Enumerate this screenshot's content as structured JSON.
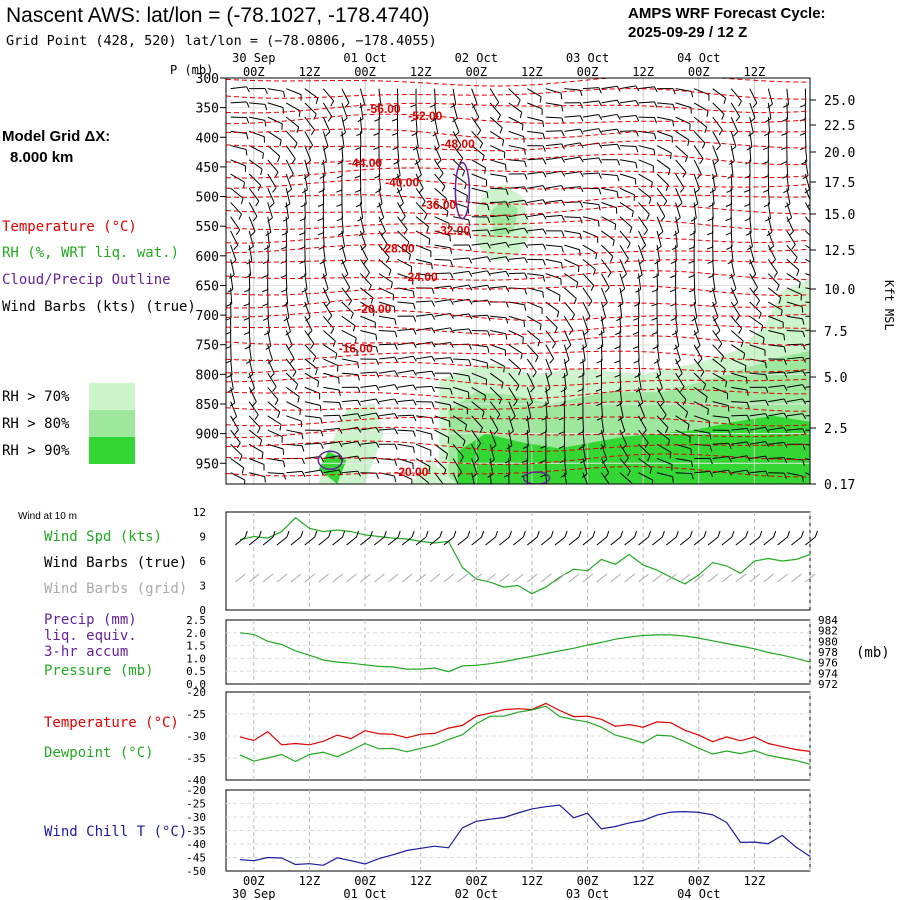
{
  "header": {
    "title": "Nascent AWS:  lat/lon = (-78.1027, -178.4740)",
    "subtitle": "Grid Point (428, 520) lat/lon = (−78.0806, −178.4055)",
    "cycle_line1": "AMPS WRF Forecast Cycle:",
    "cycle_line2": "2025-09-29 / 12  Z",
    "model_grid_label": "Model Grid ΔX:",
    "model_grid_value": "8.000 km"
  },
  "colors": {
    "temperature": "#dd0000",
    "rh": "#22aa22",
    "cloud": "#662299",
    "wind": "#000000",
    "wind_grid": "#aaaaaa",
    "wind_chill": "#1a1aa0",
    "rh70": "#ccf5cc",
    "rh80": "#9ee89e",
    "rh90": "#33d633"
  },
  "time_axis": {
    "top_dates": [
      "30 Sep",
      "01 Oct",
      "02 Oct",
      "03 Oct",
      "04 Oct"
    ],
    "hours": [
      "00Z",
      "12Z",
      "00Z",
      "12Z",
      "00Z",
      "12Z",
      "00Z",
      "12Z",
      "00Z",
      "12Z"
    ],
    "bottom_hours": [
      "00Z",
      "12Z",
      "00Z",
      "12Z",
      "00Z",
      "12Z",
      "00Z",
      "12Z",
      "00Z",
      "12Z"
    ],
    "bottom_dates": [
      "30 Sep",
      "01 Oct",
      "02 Oct",
      "03 Oct",
      "04 Oct"
    ]
  },
  "legend": {
    "temperature": "Temperature (°C)",
    "rh": "RH (%, WRT liq. wat.)",
    "cloud": "Cloud/Precip Outline",
    "wind": "Wind Barbs (kts) (true)",
    "rh70": "RH > 70%",
    "rh80": "RH > 80%",
    "rh90": "RH > 90%"
  },
  "panel_labels": {
    "wind10m": "Wind at 10 m",
    "wspd": "Wind Spd (kts)",
    "wbarbs_true": "Wind Barbs (true)",
    "wbarbs_grid": "Wind Barbs (grid)",
    "precip1": "Precip (mm)",
    "precip2": "liq. equiv.",
    "precip3": "3-hr accum",
    "pressure": "Pressure (mb)",
    "pressure_unit": "(mb)",
    "temperature": "Temperature (°C)",
    "dewpoint": "Dewpoint (°C)",
    "windchill": "Wind Chill T (°C)"
  },
  "chart_data": [
    {
      "type": "heatmap",
      "p_axis_label": "P (mb)",
      "right_axis_label": "Kft MSL",
      "p_ticks": [
        300,
        350,
        400,
        450,
        500,
        550,
        600,
        650,
        700,
        750,
        800,
        850,
        900,
        950
      ],
      "height_ticks": [
        "25.0",
        "22.5",
        "20.0",
        "17.5",
        "15.0",
        "12.5",
        "10.0",
        "7.5",
        "5.0",
        "2.5",
        "0.17"
      ],
      "ylim": [
        300,
        985
      ],
      "x_hours": [
        0,
        120
      ],
      "temperature_labels": [
        {
          "text": "-56.00",
          "hour": 28,
          "p": 352
        },
        {
          "text": "-52.00",
          "hour": 37,
          "p": 364
        },
        {
          "text": "-48.00",
          "hour": 44,
          "p": 411
        },
        {
          "text": "-44.00",
          "hour": 24,
          "p": 443
        },
        {
          "text": "-40.00",
          "hour": 32,
          "p": 476
        },
        {
          "text": "-36.00",
          "hour": 40,
          "p": 514
        },
        {
          "text": "-32.00",
          "hour": 43,
          "p": 557
        },
        {
          "text": "-28.00",
          "hour": 31,
          "p": 588
        },
        {
          "text": "-24.00",
          "hour": 36,
          "p": 636
        },
        {
          "text": "-20.00",
          "hour": 26,
          "p": 690
        },
        {
          "text": "-16.00",
          "hour": 22,
          "p": 756
        },
        {
          "text": "-20.00",
          "hour": 34,
          "p": 965
        }
      ]
    },
    {
      "type": "line",
      "name": "wind10m",
      "ylim": [
        0,
        12
      ],
      "yticks": [
        0,
        3,
        6,
        9,
        12
      ],
      "x": [
        -3,
        0,
        3,
        6,
        9,
        12,
        15,
        18,
        21,
        24,
        27,
        30,
        33,
        36,
        39,
        42,
        45,
        48,
        51,
        54,
        57,
        60,
        63,
        66,
        69,
        72,
        75,
        78,
        81,
        84,
        87,
        90,
        93,
        96,
        99,
        102,
        105,
        108,
        111,
        114,
        117,
        120
      ],
      "series": [
        {
          "name": "Wind Spd (kts)",
          "values": [
            8.6,
            9.0,
            8.8,
            9.6,
            11.3,
            10.0,
            9.6,
            9.8,
            9.6,
            9.2,
            9.0,
            8.8,
            8.7,
            8.4,
            8.2,
            8.4,
            5.2,
            3.8,
            3.4,
            2.8,
            3.0,
            2.0,
            2.8,
            4.0,
            5.0,
            4.8,
            6.2,
            5.6,
            6.8,
            5.5,
            4.9,
            4.0,
            3.2,
            4.3,
            5.8,
            5.4,
            4.5,
            6.0,
            6.3,
            6.0,
            6.2,
            6.8
          ]
        }
      ]
    },
    {
      "type": "line",
      "name": "precip_pressure",
      "ylim_left": [
        0,
        2.5
      ],
      "yticks_left": [
        "0.0",
        "0.5",
        "1.0",
        "1.5",
        "2.0",
        "2.5"
      ],
      "ylim_right": [
        972,
        984
      ],
      "yticks_right": [
        "984",
        "982",
        "980",
        "978",
        "976",
        "974",
        "972"
      ],
      "x": [
        -3,
        0,
        3,
        6,
        9,
        12,
        15,
        18,
        21,
        24,
        27,
        30,
        33,
        36,
        39,
        42,
        45,
        48,
        51,
        54,
        57,
        60,
        63,
        66,
        69,
        72,
        75,
        78,
        81,
        84,
        87,
        90,
        93,
        96,
        99,
        102,
        105,
        108,
        111,
        114,
        117,
        120
      ],
      "series": [
        {
          "name": "Pressure (mb)",
          "values": [
            981.6,
            981.3,
            980.0,
            979.4,
            978.2,
            977.4,
            976.5,
            976.1,
            975.9,
            975.6,
            975.3,
            975.2,
            974.8,
            974.8,
            975.0,
            974.3,
            975.4,
            975.5,
            975.8,
            976.2,
            976.7,
            977.2,
            977.7,
            978.2,
            978.7,
            979.3,
            979.8,
            980.4,
            980.8,
            981.1,
            981.2,
            981.2,
            981.0,
            980.6,
            980.1,
            979.6,
            979.1,
            978.6,
            977.9,
            977.4,
            976.8,
            976.1
          ]
        }
      ]
    },
    {
      "type": "line",
      "name": "temperature_dewpoint",
      "ylim": [
        -40,
        -20
      ],
      "yticks": [
        -20,
        -25,
        -30,
        -35,
        -40
      ],
      "x": [
        -3,
        0,
        3,
        6,
        9,
        12,
        15,
        18,
        21,
        24,
        27,
        30,
        33,
        36,
        39,
        42,
        45,
        48,
        51,
        54,
        57,
        60,
        63,
        66,
        69,
        72,
        75,
        78,
        81,
        84,
        87,
        90,
        93,
        96,
        99,
        102,
        105,
        108,
        111,
        114,
        117,
        120
      ],
      "series": [
        {
          "name": "Temperature (°C)",
          "values": [
            -30.2,
            -31.0,
            -29.0,
            -32.0,
            -31.7,
            -32.0,
            -31.2,
            -29.8,
            -30.6,
            -28.8,
            -29.5,
            -29.6,
            -30.4,
            -29.6,
            -29.4,
            -28.2,
            -27.6,
            -25.5,
            -24.8,
            -24.0,
            -23.8,
            -24.0,
            -22.6,
            -24.2,
            -25.6,
            -25.5,
            -26.2,
            -27.8,
            -27.4,
            -28.0,
            -26.8,
            -27.0,
            -28.7,
            -29.8,
            -31.3,
            -30.2,
            -31.1,
            -30.2,
            -31.7,
            -32.4,
            -33.1,
            -33.5
          ]
        },
        {
          "name": "Dewpoint (°C)",
          "values": [
            -34.3,
            -35.7,
            -35.0,
            -34.2,
            -35.8,
            -34.2,
            -33.7,
            -34.7,
            -33.3,
            -31.7,
            -32.9,
            -32.8,
            -33.6,
            -32.8,
            -32.1,
            -30.8,
            -29.7,
            -27.2,
            -25.5,
            -25.5,
            -24.6,
            -24.1,
            -23.2,
            -25.6,
            -26.3,
            -26.8,
            -28.0,
            -29.8,
            -30.6,
            -31.6,
            -29.8,
            -30.0,
            -31.3,
            -32.8,
            -34.1,
            -33.4,
            -34.0,
            -33.3,
            -34.4,
            -35.0,
            -35.6,
            -36.4
          ]
        }
      ]
    },
    {
      "type": "line",
      "name": "wind_chill",
      "ylim": [
        -50,
        -20
      ],
      "yticks": [
        -20,
        -25,
        -30,
        -35,
        -40,
        -45,
        -50
      ],
      "x": [
        -3,
        0,
        3,
        6,
        9,
        12,
        15,
        18,
        21,
        24,
        27,
        30,
        33,
        36,
        39,
        42,
        45,
        48,
        51,
        54,
        57,
        60,
        63,
        66,
        69,
        72,
        75,
        78,
        81,
        84,
        87,
        90,
        93,
        96,
        99,
        102,
        105,
        108,
        111,
        114,
        117,
        120
      ],
      "series": [
        {
          "name": "Wind Chill T (°C)",
          "values": [
            -45.8,
            -46.2,
            -45.0,
            -45.2,
            -47.6,
            -47.3,
            -47.9,
            -45.1,
            -46.2,
            -47.4,
            -45.4,
            -44.0,
            -42.4,
            -41.6,
            -40.8,
            -41.4,
            -34.0,
            -31.6,
            -30.8,
            -30.2,
            -28.5,
            -27.0,
            -26.2,
            -25.6,
            -30.3,
            -28.6,
            -34.4,
            -33.5,
            -32.2,
            -31.3,
            -29.3,
            -28.2,
            -28.0,
            -28.3,
            -29.2,
            -32.0,
            -39.4,
            -39.3,
            -39.9,
            -36.8,
            -41.2,
            -44.6
          ]
        }
      ]
    }
  ]
}
